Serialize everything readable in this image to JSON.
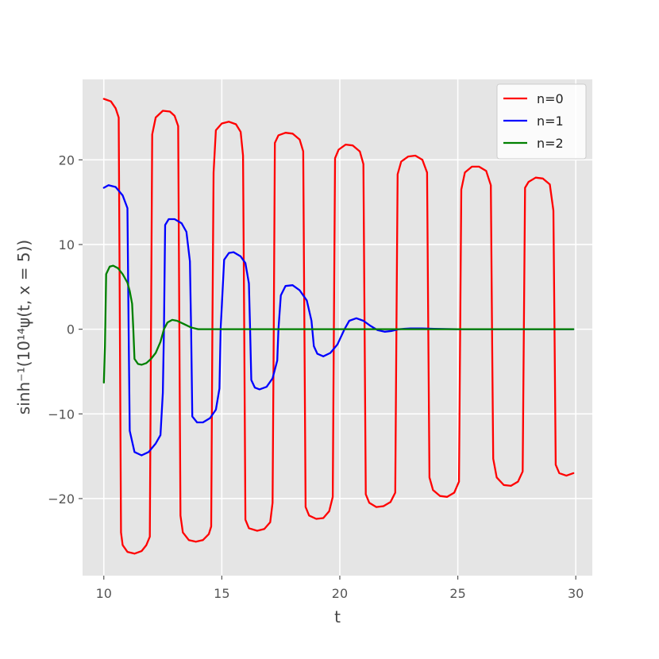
{
  "chart_data": {
    "type": "line",
    "xlabel": "t",
    "ylabel": "sinh⁻¹(10¹⁴ψ(t, x = 5))",
    "xlim": [
      9.1,
      30.7
    ],
    "ylim": [
      -29.1,
      29.5
    ],
    "xticks": [
      10,
      15,
      20,
      25,
      30
    ],
    "xtick_labels": [
      "10",
      "15",
      "20",
      "25",
      "30"
    ],
    "yticks": [
      -20,
      -10,
      0,
      10,
      20
    ],
    "ytick_labels": [
      "−20",
      "−10",
      "0",
      "10",
      "20"
    ],
    "grid": true,
    "legend_position": "top-right",
    "series": [
      {
        "name": "n=0",
        "color": "#ff0000",
        "points": [
          [
            10.0,
            27.2
          ],
          [
            10.3,
            26.9
          ],
          [
            10.5,
            26.1
          ],
          [
            10.63,
            25.0
          ],
          [
            10.68,
            0.0
          ],
          [
            10.73,
            -24.0
          ],
          [
            10.8,
            -25.5
          ],
          [
            11.0,
            -26.3
          ],
          [
            11.3,
            -26.5
          ],
          [
            11.6,
            -26.2
          ],
          [
            11.8,
            -25.5
          ],
          [
            11.95,
            -24.5
          ],
          [
            12.0,
            0.0
          ],
          [
            12.05,
            23.0
          ],
          [
            12.2,
            25.0
          ],
          [
            12.5,
            25.8
          ],
          [
            12.8,
            25.7
          ],
          [
            13.0,
            25.2
          ],
          [
            13.15,
            24.0
          ],
          [
            13.2,
            0.0
          ],
          [
            13.25,
            -22.0
          ],
          [
            13.35,
            -24.0
          ],
          [
            13.6,
            -24.9
          ],
          [
            13.9,
            -25.1
          ],
          [
            14.2,
            -24.9
          ],
          [
            14.45,
            -24.2
          ],
          [
            14.55,
            -23.3
          ],
          [
            14.6,
            0.0
          ],
          [
            14.65,
            18.5
          ],
          [
            14.75,
            23.5
          ],
          [
            15.0,
            24.3
          ],
          [
            15.3,
            24.5
          ],
          [
            15.6,
            24.2
          ],
          [
            15.8,
            23.3
          ],
          [
            15.9,
            20.5
          ],
          [
            15.95,
            0.0
          ],
          [
            16.0,
            -22.5
          ],
          [
            16.15,
            -23.5
          ],
          [
            16.5,
            -23.8
          ],
          [
            16.8,
            -23.6
          ],
          [
            17.05,
            -22.8
          ],
          [
            17.15,
            -20.5
          ],
          [
            17.2,
            0.0
          ],
          [
            17.25,
            22.0
          ],
          [
            17.4,
            22.9
          ],
          [
            17.7,
            23.2
          ],
          [
            18.0,
            23.1
          ],
          [
            18.3,
            22.4
          ],
          [
            18.45,
            21.0
          ],
          [
            18.5,
            0.0
          ],
          [
            18.55,
            -21.0
          ],
          [
            18.7,
            -22.0
          ],
          [
            19.0,
            -22.4
          ],
          [
            19.3,
            -22.3
          ],
          [
            19.55,
            -21.5
          ],
          [
            19.7,
            -19.8
          ],
          [
            19.75,
            0.0
          ],
          [
            19.8,
            20.2
          ],
          [
            19.95,
            21.2
          ],
          [
            20.25,
            21.8
          ],
          [
            20.55,
            21.7
          ],
          [
            20.85,
            21.0
          ],
          [
            21.0,
            19.5
          ],
          [
            21.05,
            0.0
          ],
          [
            21.1,
            -19.5
          ],
          [
            21.25,
            -20.5
          ],
          [
            21.55,
            -21.0
          ],
          [
            21.85,
            -20.9
          ],
          [
            22.15,
            -20.4
          ],
          [
            22.35,
            -19.3
          ],
          [
            22.4,
            0.0
          ],
          [
            22.45,
            18.3
          ],
          [
            22.6,
            19.8
          ],
          [
            22.9,
            20.4
          ],
          [
            23.2,
            20.5
          ],
          [
            23.5,
            20.0
          ],
          [
            23.7,
            18.5
          ],
          [
            23.75,
            0.0
          ],
          [
            23.8,
            -17.5
          ],
          [
            23.95,
            -19.0
          ],
          [
            24.25,
            -19.7
          ],
          [
            24.55,
            -19.8
          ],
          [
            24.85,
            -19.3
          ],
          [
            25.05,
            -18.0
          ],
          [
            25.1,
            0.0
          ],
          [
            25.15,
            16.5
          ],
          [
            25.3,
            18.5
          ],
          [
            25.6,
            19.2
          ],
          [
            25.9,
            19.2
          ],
          [
            26.2,
            18.7
          ],
          [
            26.4,
            17.0
          ],
          [
            26.45,
            0.0
          ],
          [
            26.5,
            -15.3
          ],
          [
            26.65,
            -17.5
          ],
          [
            26.95,
            -18.4
          ],
          [
            27.25,
            -18.5
          ],
          [
            27.55,
            -18.0
          ],
          [
            27.75,
            -16.8
          ],
          [
            27.8,
            0.0
          ],
          [
            27.85,
            16.7
          ],
          [
            28.0,
            17.4
          ],
          [
            28.3,
            17.9
          ],
          [
            28.6,
            17.8
          ],
          [
            28.9,
            17.1
          ],
          [
            29.05,
            14.0
          ],
          [
            29.1,
            0.0
          ],
          [
            29.15,
            -16.0
          ],
          [
            29.3,
            -17.0
          ],
          [
            29.6,
            -17.3
          ],
          [
            29.9,
            -17.0
          ]
        ]
      },
      {
        "name": "n=1",
        "color": "#0000ff",
        "points": [
          [
            10.0,
            16.7
          ],
          [
            10.2,
            17.0
          ],
          [
            10.5,
            16.8
          ],
          [
            10.8,
            15.8
          ],
          [
            11.0,
            14.3
          ],
          [
            11.05,
            0.0
          ],
          [
            11.1,
            -12.0
          ],
          [
            11.3,
            -14.5
          ],
          [
            11.6,
            -14.9
          ],
          [
            11.9,
            -14.5
          ],
          [
            12.2,
            -13.5
          ],
          [
            12.4,
            -12.5
          ],
          [
            12.5,
            -7.5
          ],
          [
            12.55,
            0.0
          ],
          [
            12.6,
            12.3
          ],
          [
            12.75,
            13.0
          ],
          [
            13.0,
            13.0
          ],
          [
            13.3,
            12.5
          ],
          [
            13.5,
            11.5
          ],
          [
            13.65,
            8.0
          ],
          [
            13.7,
            0.0
          ],
          [
            13.75,
            -10.3
          ],
          [
            13.95,
            -11.0
          ],
          [
            14.2,
            -11.0
          ],
          [
            14.5,
            -10.5
          ],
          [
            14.75,
            -9.5
          ],
          [
            14.9,
            -7.0
          ],
          [
            14.95,
            0.0
          ],
          [
            15.1,
            8.2
          ],
          [
            15.3,
            9.0
          ],
          [
            15.5,
            9.1
          ],
          [
            15.8,
            8.6
          ],
          [
            16.0,
            7.8
          ],
          [
            16.15,
            5.4
          ],
          [
            16.2,
            0.0
          ],
          [
            16.25,
            -6.0
          ],
          [
            16.4,
            -6.9
          ],
          [
            16.6,
            -7.1
          ],
          [
            16.9,
            -6.8
          ],
          [
            17.15,
            -5.8
          ],
          [
            17.35,
            -3.7
          ],
          [
            17.4,
            0.0
          ],
          [
            17.5,
            4.0
          ],
          [
            17.7,
            5.1
          ],
          [
            18.0,
            5.2
          ],
          [
            18.3,
            4.6
          ],
          [
            18.6,
            3.4
          ],
          [
            18.8,
            1.0
          ],
          [
            18.9,
            -2.0
          ],
          [
            19.05,
            -2.9
          ],
          [
            19.3,
            -3.2
          ],
          [
            19.6,
            -2.8
          ],
          [
            19.9,
            -1.8
          ],
          [
            20.2,
            0.0
          ],
          [
            20.4,
            1.0
          ],
          [
            20.7,
            1.3
          ],
          [
            21.0,
            1.0
          ],
          [
            21.3,
            0.4
          ],
          [
            21.6,
            -0.1
          ],
          [
            21.9,
            -0.3
          ],
          [
            22.2,
            -0.2
          ],
          [
            22.5,
            0.0
          ],
          [
            23.0,
            0.1
          ],
          [
            23.5,
            0.1
          ],
          [
            24.0,
            0.05
          ],
          [
            25.0,
            0.0
          ],
          [
            26.0,
            0.0
          ],
          [
            27.0,
            0.0
          ],
          [
            28.0,
            0.0
          ],
          [
            29.0,
            0.0
          ],
          [
            29.9,
            0.0
          ]
        ]
      },
      {
        "name": "n=2",
        "color": "#008000",
        "points": [
          [
            10.0,
            -6.3
          ],
          [
            10.05,
            -2.0
          ],
          [
            10.1,
            6.5
          ],
          [
            10.25,
            7.4
          ],
          [
            10.4,
            7.5
          ],
          [
            10.6,
            7.2
          ],
          [
            10.8,
            6.5
          ],
          [
            11.0,
            5.5
          ],
          [
            11.1,
            4.5
          ],
          [
            11.2,
            3.0
          ],
          [
            11.25,
            0.0
          ],
          [
            11.3,
            -3.5
          ],
          [
            11.45,
            -4.1
          ],
          [
            11.6,
            -4.2
          ],
          [
            11.8,
            -4.0
          ],
          [
            12.0,
            -3.5
          ],
          [
            12.2,
            -2.8
          ],
          [
            12.4,
            -1.5
          ],
          [
            12.55,
            0.0
          ],
          [
            12.7,
            0.8
          ],
          [
            12.9,
            1.1
          ],
          [
            13.1,
            1.0
          ],
          [
            13.4,
            0.6
          ],
          [
            13.7,
            0.2
          ],
          [
            14.0,
            0.0
          ],
          [
            15.0,
            0.0
          ],
          [
            17.0,
            0.0
          ],
          [
            20.0,
            0.0
          ],
          [
            23.0,
            0.0
          ],
          [
            26.0,
            0.0
          ],
          [
            29.9,
            0.0
          ]
        ]
      }
    ]
  }
}
